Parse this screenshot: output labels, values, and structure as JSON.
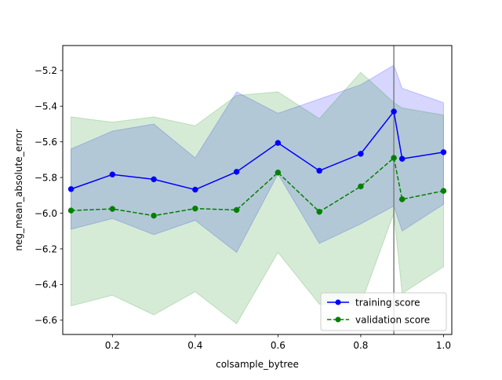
{
  "chart_data": {
    "type": "line",
    "title": "",
    "xlabel": "colsample_bytree",
    "ylabel": "neg_mean_absolute_error",
    "xlim": [
      0.08,
      1.02
    ],
    "ylim": [
      -6.68,
      -5.06
    ],
    "x": [
      0.1,
      0.2,
      0.3,
      0.4,
      0.5,
      0.6,
      0.7,
      0.8,
      0.88,
      0.9,
      1.0
    ],
    "xticks": [
      0.2,
      0.4,
      0.6,
      0.8,
      1.0
    ],
    "xtick_labels": [
      "0.2",
      "0.4",
      "0.6",
      "0.8",
      "1.0"
    ],
    "yticks": [
      -6.6,
      -6.4,
      -6.2,
      -6.0,
      -5.8,
      -5.6,
      -5.4,
      -5.2
    ],
    "ytick_labels": [
      "−6.6",
      "−6.4",
      "−6.2",
      "−6.0",
      "−5.8",
      "−5.6",
      "−5.4",
      "−5.2"
    ],
    "vline_x": 0.88,
    "vline_color": "#808080",
    "grid": false,
    "legend_position": "lower-right",
    "series": [
      {
        "name": "training score",
        "color": "#0000ff",
        "linestyle": "solid",
        "marker": "circle",
        "values": [
          -5.865,
          -5.783,
          -5.81,
          -5.868,
          -5.768,
          -5.606,
          -5.762,
          -5.667,
          -5.43,
          -5.695,
          -5.658
        ],
        "band_lower": [
          -6.09,
          -6.03,
          -6.12,
          -6.04,
          -6.22,
          -5.78,
          -6.17,
          -6.06,
          -5.96,
          -6.1,
          -5.95
        ],
        "band_upper": [
          -5.64,
          -5.54,
          -5.5,
          -5.69,
          -5.32,
          -5.44,
          -5.36,
          -5.28,
          -5.17,
          -5.3,
          -5.38
        ],
        "band_color": "#0000ff"
      },
      {
        "name": "validation score",
        "color": "#008000",
        "linestyle": "dashed",
        "marker": "circle",
        "values": [
          -5.985,
          -5.976,
          -6.014,
          -5.974,
          -5.982,
          -5.772,
          -5.992,
          -5.85,
          -5.69,
          -5.922,
          -5.875
        ],
        "band_lower": [
          -6.52,
          -6.46,
          -6.57,
          -6.44,
          -6.62,
          -6.22,
          -6.51,
          -6.51,
          -6.0,
          -6.45,
          -6.3
        ],
        "band_upper": [
          -5.46,
          -5.49,
          -5.46,
          -5.51,
          -5.34,
          -5.32,
          -5.47,
          -5.21,
          -5.38,
          -5.41,
          -5.45
        ],
        "band_color": "#008000"
      }
    ]
  }
}
